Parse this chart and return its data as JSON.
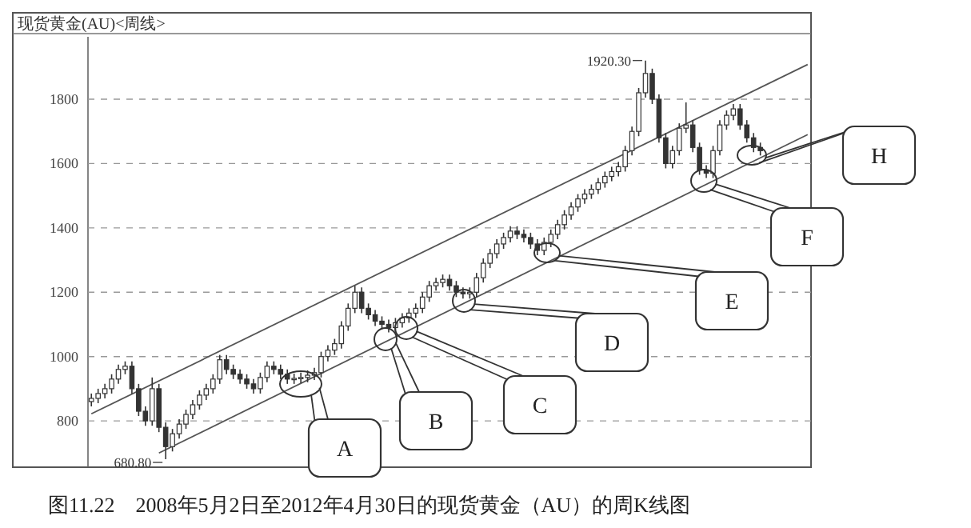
{
  "chart_data": {
    "type": "candlestick",
    "title": "现货黄金(AU)<周线>",
    "categories": [
      null,
      null,
      null,
      null,
      null,
      null,
      null,
      null,
      null,
      null,
      null,
      null,
      null,
      null,
      null,
      null,
      null,
      null,
      null,
      null,
      null,
      null,
      null,
      null,
      null,
      null,
      null,
      null,
      null,
      null,
      null,
      null,
      null,
      null,
      null,
      null,
      null,
      null,
      null,
      null,
      null,
      null,
      null,
      null,
      null,
      null,
      null,
      null,
      null,
      null,
      null,
      null,
      null,
      null,
      null,
      null,
      null,
      null,
      null,
      null,
      null,
      null,
      null,
      null,
      null,
      null,
      null,
      null,
      null,
      null,
      null,
      null,
      null,
      null,
      null,
      null,
      null,
      null,
      null,
      null,
      null,
      null,
      null,
      null,
      null,
      null,
      null,
      null,
      null,
      null,
      null,
      null,
      null,
      null,
      null,
      null,
      null,
      null,
      null,
      null,
      null,
      null,
      null,
      null,
      null,
      null,
      null
    ],
    "color": "#333333",
    "ohlc": [
      [
        860,
        885,
        845,
        870
      ],
      [
        870,
        900,
        855,
        885
      ],
      [
        885,
        915,
        870,
        900
      ],
      [
        900,
        945,
        885,
        930
      ],
      [
        930,
        975,
        915,
        960
      ],
      [
        960,
        985,
        945,
        970
      ],
      [
        970,
        985,
        885,
        900
      ],
      [
        900,
        915,
        815,
        830
      ],
      [
        830,
        845,
        785,
        800
      ],
      [
        800,
        935,
        785,
        900
      ],
      [
        900,
        915,
        765,
        780
      ],
      [
        780,
        795,
        680.8,
        720
      ],
      [
        720,
        775,
        705,
        760
      ],
      [
        760,
        805,
        745,
        790
      ],
      [
        790,
        835,
        775,
        820
      ],
      [
        820,
        865,
        805,
        850
      ],
      [
        850,
        895,
        835,
        880
      ],
      [
        880,
        915,
        865,
        900
      ],
      [
        900,
        945,
        885,
        930
      ],
      [
        930,
        1005,
        915,
        990
      ],
      [
        990,
        1005,
        945,
        960
      ],
      [
        960,
        975,
        930,
        945
      ],
      [
        945,
        960,
        915,
        930
      ],
      [
        930,
        945,
        900,
        915
      ],
      [
        915,
        930,
        885,
        900
      ],
      [
        900,
        950,
        885,
        935
      ],
      [
        935,
        985,
        920,
        970
      ],
      [
        970,
        985,
        945,
        960
      ],
      [
        960,
        975,
        930,
        945
      ],
      [
        945,
        960,
        915,
        930
      ],
      [
        930,
        947,
        915,
        932
      ],
      [
        932,
        950,
        917,
        935
      ],
      [
        935,
        957,
        920,
        942
      ],
      [
        942,
        965,
        927,
        950
      ],
      [
        950,
        1015,
        935,
        1000
      ],
      [
        1000,
        1035,
        985,
        1020
      ],
      [
        1020,
        1055,
        1005,
        1040
      ],
      [
        1040,
        1110,
        1025,
        1095
      ],
      [
        1095,
        1165,
        1080,
        1150
      ],
      [
        1150,
        1220,
        1135,
        1200
      ],
      [
        1200,
        1215,
        1135,
        1150
      ],
      [
        1150,
        1165,
        1115,
        1130
      ],
      [
        1130,
        1145,
        1095,
        1110
      ],
      [
        1110,
        1125,
        1085,
        1100
      ],
      [
        1100,
        1115,
        1075,
        1090
      ],
      [
        1090,
        1120,
        1075,
        1105
      ],
      [
        1105,
        1135,
        1090,
        1120
      ],
      [
        1120,
        1150,
        1105,
        1135
      ],
      [
        1135,
        1165,
        1120,
        1150
      ],
      [
        1150,
        1200,
        1135,
        1185
      ],
      [
        1185,
        1235,
        1170,
        1220
      ],
      [
        1220,
        1245,
        1205,
        1230
      ],
      [
        1230,
        1255,
        1215,
        1240
      ],
      [
        1240,
        1255,
        1205,
        1220
      ],
      [
        1220,
        1235,
        1185,
        1200
      ],
      [
        1200,
        1215,
        1180,
        1195
      ],
      [
        1195,
        1215,
        1180,
        1200
      ],
      [
        1200,
        1260,
        1185,
        1245
      ],
      [
        1245,
        1305,
        1230,
        1290
      ],
      [
        1290,
        1335,
        1275,
        1320
      ],
      [
        1320,
        1365,
        1305,
        1350
      ],
      [
        1350,
        1385,
        1335,
        1370
      ],
      [
        1370,
        1405,
        1355,
        1390
      ],
      [
        1390,
        1405,
        1365,
        1380
      ],
      [
        1380,
        1395,
        1355,
        1370
      ],
      [
        1370,
        1385,
        1335,
        1350
      ],
      [
        1350,
        1365,
        1315,
        1330
      ],
      [
        1330,
        1370,
        1315,
        1355
      ],
      [
        1355,
        1395,
        1340,
        1380
      ],
      [
        1380,
        1425,
        1365,
        1410
      ],
      [
        1410,
        1455,
        1395,
        1440
      ],
      [
        1440,
        1480,
        1425,
        1465
      ],
      [
        1465,
        1505,
        1450,
        1490
      ],
      [
        1490,
        1520,
        1475,
        1505
      ],
      [
        1505,
        1535,
        1490,
        1520
      ],
      [
        1520,
        1555,
        1505,
        1540
      ],
      [
        1540,
        1575,
        1525,
        1560
      ],
      [
        1560,
        1590,
        1545,
        1575
      ],
      [
        1575,
        1605,
        1560,
        1590
      ],
      [
        1590,
        1655,
        1575,
        1640
      ],
      [
        1640,
        1715,
        1625,
        1700
      ],
      [
        1700,
        1835,
        1685,
        1820
      ],
      [
        1820,
        1920.3,
        1805,
        1880
      ],
      [
        1880,
        1895,
        1785,
        1800
      ],
      [
        1800,
        1815,
        1665,
        1680
      ],
      [
        1680,
        1695,
        1585,
        1600
      ],
      [
        1600,
        1655,
        1585,
        1640
      ],
      [
        1640,
        1725,
        1625,
        1710
      ],
      [
        1710,
        1790,
        1695,
        1720
      ],
      [
        1720,
        1735,
        1635,
        1650
      ],
      [
        1650,
        1665,
        1565,
        1580
      ],
      [
        1580,
        1595,
        1555,
        1570
      ],
      [
        1570,
        1655,
        1555,
        1640
      ],
      [
        1640,
        1735,
        1625,
        1720
      ],
      [
        1720,
        1765,
        1705,
        1750
      ],
      [
        1750,
        1785,
        1735,
        1770
      ],
      [
        1770,
        1785,
        1705,
        1720
      ],
      [
        1720,
        1735,
        1665,
        1680
      ],
      [
        1680,
        1695,
        1635,
        1650
      ],
      [
        1650,
        1665,
        1625,
        1640
      ],
      null,
      null,
      null,
      null,
      null,
      null,
      null
    ],
    "series": [
      {
        "type": "line",
        "color": "#555555",
        "values": [
          822,
          null,
          null,
          null,
          null,
          null,
          null,
          null,
          null,
          null,
          null,
          null,
          null,
          null,
          null,
          null,
          null,
          null,
          null,
          null,
          null,
          null,
          null,
          null,
          null,
          null,
          null,
          null,
          null,
          null,
          null,
          null,
          null,
          null,
          null,
          null,
          null,
          null,
          null,
          null,
          null,
          null,
          null,
          null,
          null,
          null,
          null,
          null,
          null,
          null,
          null,
          null,
          null,
          null,
          null,
          null,
          null,
          null,
          null,
          null,
          null,
          null,
          null,
          null,
          null,
          null,
          null,
          null,
          null,
          null,
          null,
          null,
          null,
          null,
          null,
          null,
          null,
          null,
          null,
          null,
          null,
          null,
          null,
          null,
          null,
          null,
          null,
          null,
          null,
          null,
          null,
          null,
          null,
          null,
          null,
          null,
          null,
          null,
          null,
          null,
          null,
          null,
          null,
          null,
          null,
          null,
          1908
        ]
      },
      {
        "type": "line",
        "color": "#555555",
        "values": [
          null,
          null,
          null,
          null,
          null,
          null,
          null,
          null,
          null,
          null,
          700,
          null,
          null,
          null,
          null,
          null,
          null,
          null,
          null,
          null,
          null,
          null,
          null,
          null,
          null,
          null,
          null,
          null,
          null,
          null,
          null,
          null,
          null,
          null,
          null,
          null,
          null,
          null,
          null,
          null,
          null,
          null,
          null,
          null,
          null,
          null,
          null,
          null,
          null,
          null,
          null,
          null,
          null,
          null,
          null,
          null,
          null,
          null,
          null,
          null,
          null,
          null,
          null,
          null,
          null,
          null,
          null,
          null,
          null,
          null,
          null,
          null,
          null,
          null,
          null,
          null,
          null,
          null,
          null,
          null,
          null,
          null,
          null,
          null,
          null,
          null,
          null,
          null,
          null,
          null,
          null,
          null,
          null,
          null,
          null,
          null,
          null,
          null,
          null,
          null,
          null,
          null,
          null,
          null,
          null,
          null,
          1690
        ]
      }
    ],
    "ylim": [
      656,
      1994
    ],
    "yticks": [
      800,
      1000,
      1200,
      1400,
      1600,
      1800
    ],
    "grid": "y",
    "tick_labels": "y",
    "annotations": [
      "1920.30",
      "680.80",
      "A",
      "B",
      "C",
      "D",
      "E",
      "F",
      "H",
      "图11.22　2008年5月2日至2012年4月30日的现货黄金（AU）的周K线图"
    ]
  }
}
